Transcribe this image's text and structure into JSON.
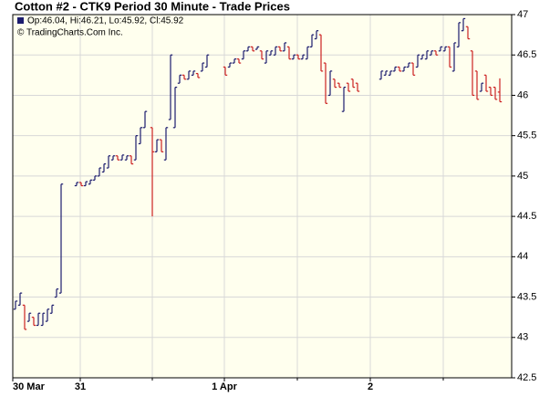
{
  "chart_data": {
    "type": "ohlc",
    "title": "Cotton #2 - CTK9 Period 30 Minute - Trade Prices",
    "legend_text": "Op:46.04, Hi:46.21, Lo:45.92, Cl:45.92",
    "copyright": "© TradingCharts.Com Inc.",
    "legend_color": "#1c1c6e",
    "up_color": "#1c1c6e",
    "down_color": "#cc2222",
    "background": "#ffffee",
    "grid": true,
    "xlim": [
      0,
      109.4
    ],
    "ylim": [
      42.5,
      47
    ],
    "yticks": [
      42.5,
      43,
      43.5,
      44,
      44.5,
      45,
      45.5,
      46,
      46.5,
      47
    ],
    "xticks": [
      {
        "value": 0,
        "label": "30 Mar"
      },
      {
        "value": 14.8,
        "label": "31"
      },
      {
        "value": 46.4,
        "label": "1 Apr"
      },
      {
        "value": 78.4,
        "label": "2"
      }
    ],
    "xminorticks": [
      30.6,
      62.4,
      94.4
    ],
    "x": [
      0.6,
      1.6,
      2.6,
      3.6,
      4.6,
      5.6,
      6.6,
      7.6,
      8.6,
      9.6,
      10.6,
      14,
      15,
      16,
      17,
      18,
      19,
      20,
      21,
      22,
      23,
      24,
      25,
      26,
      27,
      28,
      29,
      30.6,
      31.6,
      32.6,
      33.6,
      34.6,
      35.6,
      36.6,
      37.6,
      38.6,
      39.6,
      40.6,
      41.6,
      42.6,
      46.6,
      47.6,
      48.6,
      49.6,
      50.6,
      51.6,
      52.6,
      53.6,
      54.6,
      55.6,
      56.6,
      57.6,
      58.6,
      59.6,
      60.6,
      61.6,
      62.6,
      63.6,
      64.6,
      65.6,
      66.6,
      67.6,
      68.6,
      69.6,
      70.6,
      71.6,
      72.6,
      73.6,
      74.6,
      75.6,
      80.8,
      81.8,
      82.8,
      83.8,
      84.8,
      85.8,
      86.8,
      87.8,
      88.8,
      89.8,
      90.8,
      91.8,
      92.8,
      93.8,
      94.8,
      95.8,
      96.8,
      97.8,
      98.8,
      99.8,
      100.8,
      101.8,
      102.8,
      103.8,
      104.8,
      105.8,
      106.8
    ],
    "open": [
      43.35,
      43.4,
      43.4,
      43.2,
      43.25,
      43.15,
      43.15,
      43.2,
      43.3,
      43.5,
      43.55,
      44.88,
      44.92,
      44.88,
      44.9,
      44.95,
      45.0,
      45.05,
      45.1,
      45.2,
      45.25,
      45.2,
      45.2,
      45.25,
      45.2,
      45.4,
      45.6,
      45.6,
      45.3,
      45.45,
      45.2,
      45.7,
      45.6,
      46.15,
      46.25,
      46.2,
      46.25,
      46.27,
      46.3,
      46.35,
      46.35,
      46.35,
      46.4,
      46.45,
      46.45,
      46.55,
      46.6,
      46.57,
      46.55,
      46.4,
      46.5,
      46.5,
      46.6,
      46.55,
      46.6,
      46.45,
      46.5,
      46.45,
      46.45,
      46.6,
      46.7,
      46.75,
      46.4,
      46.0,
      46.2,
      46.15,
      45.8,
      46.15,
      46.2,
      46.15,
      46.2,
      46.25,
      46.25,
      46.3,
      46.35,
      46.3,
      46.35,
      46.4,
      46.35,
      46.45,
      46.45,
      46.5,
      46.55,
      46.55,
      46.55,
      46.6,
      46.3,
      46.6,
      46.8,
      46.85,
      46.55,
      46.3,
      46.05,
      46.25,
      46.1,
      46.1,
      46.04
    ],
    "high": [
      43.45,
      43.55,
      43.4,
      43.3,
      43.25,
      43.3,
      43.3,
      43.35,
      43.4,
      43.6,
      44.9,
      44.92,
      44.92,
      44.93,
      44.95,
      45.0,
      45.1,
      45.15,
      45.25,
      45.25,
      45.25,
      45.26,
      45.25,
      45.25,
      45.5,
      45.6,
      45.8,
      45.6,
      45.45,
      45.45,
      45.6,
      46.5,
      46.1,
      46.25,
      46.25,
      46.3,
      46.3,
      46.27,
      46.4,
      46.5,
      46.35,
      46.4,
      46.45,
      46.45,
      46.55,
      46.6,
      46.6,
      46.6,
      46.55,
      46.55,
      46.55,
      46.6,
      46.6,
      46.65,
      46.6,
      46.5,
      46.5,
      46.5,
      46.6,
      46.75,
      46.8,
      46.75,
      46.4,
      46.3,
      46.2,
      46.15,
      46.1,
      46.15,
      46.2,
      46.15,
      46.3,
      46.3,
      46.3,
      46.35,
      46.35,
      46.35,
      46.4,
      46.4,
      46.5,
      46.5,
      46.55,
      46.55,
      46.55,
      46.6,
      46.6,
      46.6,
      46.65,
      46.9,
      46.95,
      46.85,
      46.55,
      46.3,
      46.15,
      46.25,
      46.1,
      46.1,
      46.21
    ],
    "low": [
      43.35,
      43.4,
      43.1,
      43.2,
      43.15,
      43.15,
      43.15,
      43.2,
      43.3,
      43.5,
      43.55,
      44.88,
      44.88,
      44.88,
      44.9,
      44.95,
      45.0,
      45.05,
      45.1,
      45.2,
      45.2,
      45.2,
      45.2,
      45.15,
      45.2,
      45.4,
      45.6,
      44.5,
      45.3,
      45.3,
      45.2,
      45.7,
      45.6,
      46.15,
      46.2,
      46.2,
      46.25,
      46.22,
      46.3,
      46.35,
      46.25,
      46.35,
      46.4,
      46.4,
      46.45,
      46.55,
      46.55,
      46.57,
      46.45,
      46.4,
      46.5,
      46.5,
      46.55,
      46.55,
      46.45,
      46.45,
      46.45,
      46.45,
      46.45,
      46.6,
      46.7,
      46.3,
      45.9,
      46.0,
      46.1,
      46.1,
      45.8,
      46.05,
      46.1,
      46.05,
      46.2,
      46.25,
      46.25,
      46.3,
      46.3,
      46.3,
      46.35,
      46.25,
      46.35,
      46.45,
      46.45,
      46.5,
      46.5,
      46.55,
      46.55,
      46.35,
      46.3,
      46.6,
      46.8,
      46.7,
      46.0,
      45.95,
      46.05,
      46.05,
      46.0,
      45.95,
      45.92
    ],
    "close": [
      43.45,
      43.55,
      43.1,
      43.3,
      43.15,
      43.3,
      43.3,
      43.35,
      43.4,
      43.6,
      44.9,
      44.92,
      44.88,
      44.93,
      44.95,
      45.0,
      45.1,
      45.15,
      45.25,
      45.25,
      45.2,
      45.26,
      45.25,
      45.15,
      45.5,
      45.6,
      45.8,
      45.3,
      45.45,
      45.3,
      45.6,
      46.5,
      46.1,
      46.25,
      46.2,
      46.3,
      46.3,
      46.22,
      46.4,
      46.5,
      46.25,
      46.4,
      46.45,
      46.4,
      46.55,
      46.6,
      46.55,
      46.6,
      46.45,
      46.55,
      46.55,
      46.6,
      46.55,
      46.65,
      46.45,
      46.5,
      46.45,
      46.5,
      46.6,
      46.75,
      46.8,
      46.3,
      45.9,
      46.3,
      46.1,
      46.1,
      46.1,
      46.05,
      46.1,
      46.05,
      46.3,
      46.3,
      46.3,
      46.35,
      46.3,
      46.35,
      46.4,
      46.25,
      46.5,
      46.5,
      46.55,
      46.55,
      46.5,
      46.6,
      46.6,
      46.35,
      46.65,
      46.9,
      46.95,
      46.7,
      46.0,
      45.95,
      46.15,
      46.05,
      46.0,
      45.95,
      45.92
    ]
  }
}
